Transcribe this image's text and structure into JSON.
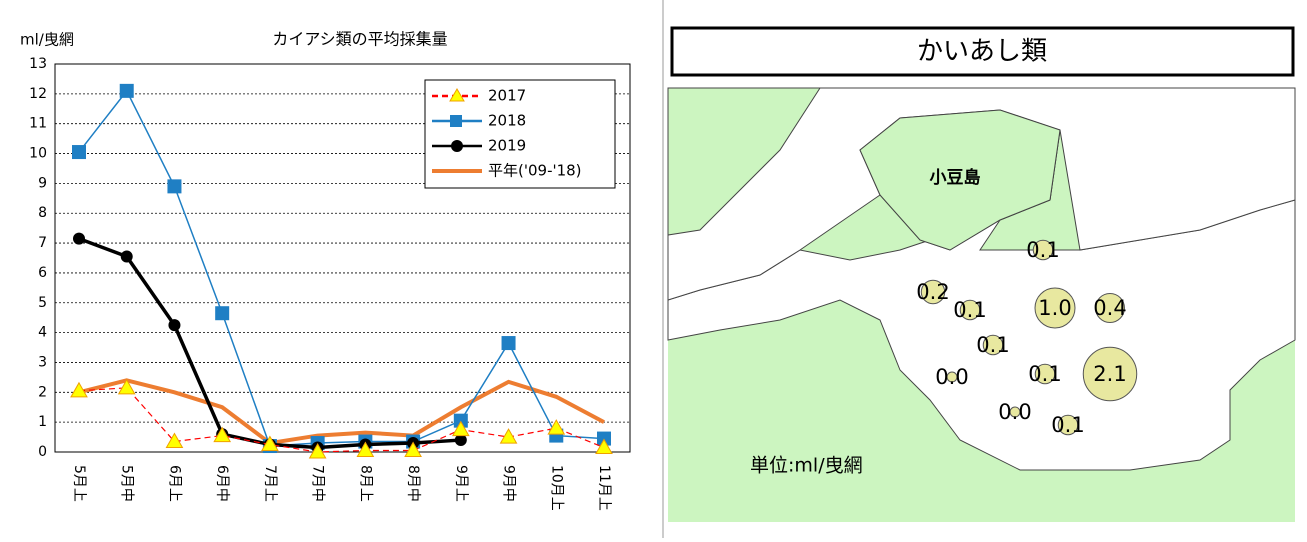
{
  "chart_data": [
    {
      "type": "line",
      "title": "カイアシ類の平均採集量",
      "y_label": "ml/曳網",
      "categories": [
        "5月上",
        "5月中",
        "6月上",
        "6月中",
        "7月上",
        "7月中",
        "8月上",
        "8月中",
        "9月上",
        "9月中",
        "10月上",
        "11月上"
      ],
      "series": [
        {
          "name": "2017",
          "color": "#ff0000",
          "marker": "triangle",
          "dashed": true,
          "values": [
            2.05,
            2.15,
            0.35,
            0.55,
            0.25,
            0.0,
            0.05,
            0.05,
            0.75,
            0.5,
            0.8,
            0.15
          ]
        },
        {
          "name": "2018",
          "color": "#1f7fc4",
          "marker": "square",
          "dashed": false,
          "values": [
            10.05,
            12.1,
            8.9,
            4.65,
            0.2,
            0.3,
            0.35,
            0.35,
            1.05,
            3.65,
            0.55,
            0.45
          ]
        },
        {
          "name": "2019",
          "color": "#000000",
          "marker": "circle",
          "dashed": false,
          "values": [
            7.15,
            6.55,
            4.25,
            0.6,
            0.25,
            0.15,
            0.25,
            0.3,
            0.4,
            null,
            null,
            null
          ]
        },
        {
          "name": "平年('09-'18)",
          "color": "#ed7d31",
          "marker": "none",
          "dashed": false,
          "values": [
            2.0,
            2.4,
            2.0,
            1.5,
            0.3,
            0.55,
            0.65,
            0.55,
            1.5,
            2.35,
            1.85,
            1.0
          ]
        }
      ],
      "ylim": [
        0,
        13
      ],
      "yticks": [
        0,
        1,
        2,
        3,
        4,
        5,
        6,
        7,
        8,
        9,
        10,
        11,
        12,
        13
      ],
      "grid": true,
      "legend": "top-right"
    },
    {
      "type": "bubble_map",
      "title": "かいあし類",
      "island": "小豆島",
      "unit": "単位:ml/曳網",
      "color": "#e8e8a0",
      "values": [
        0.1,
        0.2,
        0.1,
        1.0,
        0.4,
        0.1,
        0.0,
        0.1,
        2.1,
        0.0,
        0.1
      ],
      "value_labels": [
        "0.1",
        "0.2",
        "0.1",
        "1.0",
        "0.4",
        "0.1",
        "0.0",
        "0.1",
        "2.1",
        "0.0",
        "0.1"
      ]
    }
  ]
}
